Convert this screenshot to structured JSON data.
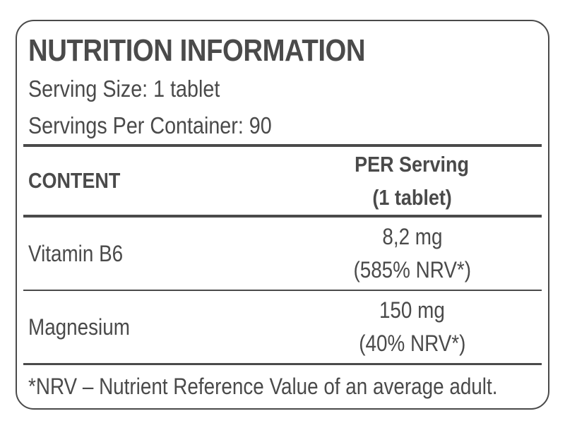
{
  "label": {
    "title": "NUTRITION INFORMATION",
    "serving_size": "Serving Size: 1 tablet",
    "servings_per_container": "Servings Per Container: 90",
    "table": {
      "header": {
        "content": "CONTENT",
        "per_serving_line1": "PER Serving",
        "per_serving_line2": "(1 tablet)"
      },
      "rows": [
        {
          "name": "Vitamin B6",
          "amount": "8,2 mg",
          "nrv": "(585% NRV*)"
        },
        {
          "name": "Magnesium",
          "amount": "150 mg",
          "nrv": "(40% NRV*)"
        }
      ]
    },
    "footnote": "*NRV – Nutrient Reference Value of an average adult.",
    "colors": {
      "text": "#4a4a4a",
      "border": "#4a4a4a",
      "background": "#ffffff"
    }
  }
}
